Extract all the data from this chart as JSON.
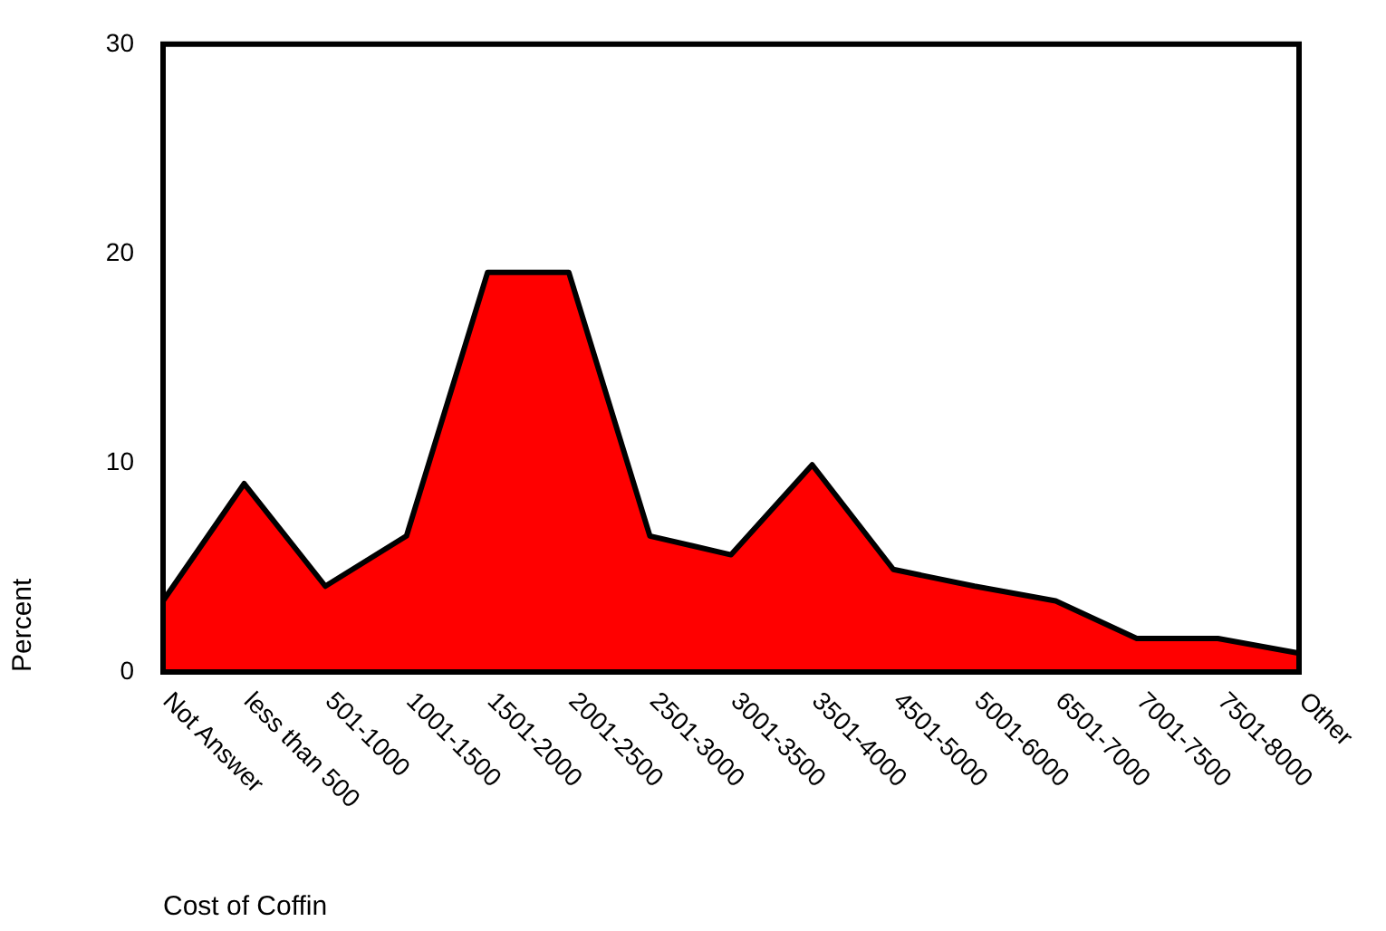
{
  "chart_data": {
    "type": "area",
    "xlabel": "Cost of Coffin",
    "ylabel": "Percent",
    "categories": [
      "Not Answer",
      "less than 500",
      "501-1000",
      "1001-1500",
      "1501-2000",
      "2001-2500",
      "2501-3000",
      "3001-3500",
      "3501-4000",
      "4501-5000",
      "5001-6000",
      "6501-7000",
      "7001-7500",
      "7501-8000",
      "Other"
    ],
    "series": [
      {
        "color": "#ff0000",
        "values": [
          3.4,
          9.0,
          4.1,
          6.5,
          19.1,
          19.1,
          6.5,
          5.6,
          9.9,
          4.9,
          4.1,
          3.4,
          1.6,
          1.6,
          0.9
        ]
      }
    ],
    "ylim": [
      0,
      30
    ],
    "yticks": [
      0,
      10,
      20,
      30
    ],
    "grid": false,
    "legend": false
  }
}
